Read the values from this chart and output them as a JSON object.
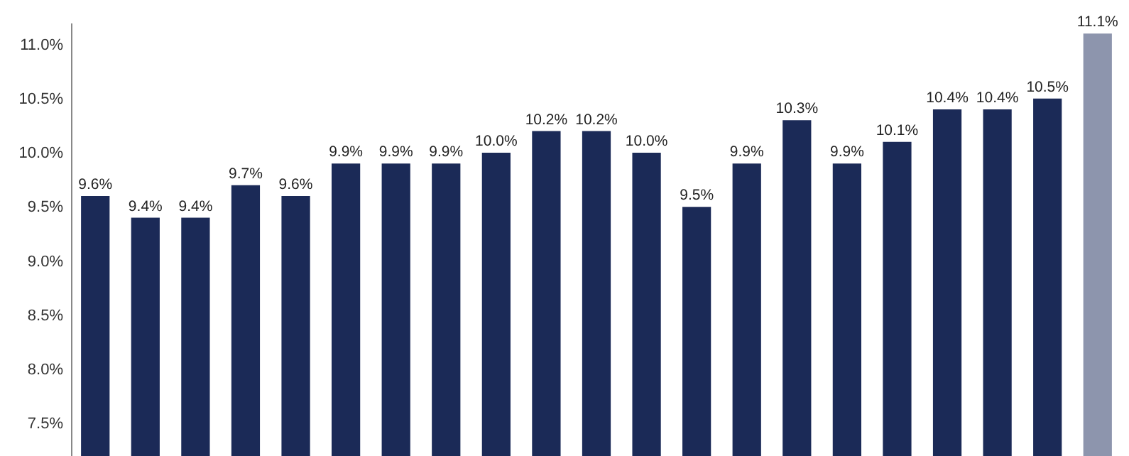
{
  "chart_data": {
    "type": "bar",
    "categories": [
      null,
      null,
      null,
      null,
      null,
      null,
      null,
      null,
      null,
      null,
      null,
      null,
      null,
      null,
      null,
      null,
      null,
      null,
      null,
      null,
      null
    ],
    "values": [
      9.6,
      9.4,
      9.4,
      9.7,
      9.6,
      9.9,
      9.9,
      9.9,
      10.0,
      10.2,
      10.2,
      10.0,
      9.5,
      9.9,
      10.3,
      9.9,
      10.1,
      10.4,
      10.4,
      10.5,
      11.1
    ],
    "colors": [
      "#1b2a57",
      "#1b2a57",
      "#1b2a57",
      "#1b2a57",
      "#1b2a57",
      "#1b2a57",
      "#1b2a57",
      "#1b2a57",
      "#1b2a57",
      "#1b2a57",
      "#1b2a57",
      "#1b2a57",
      "#1b2a57",
      "#1b2a57",
      "#1b2a57",
      "#1b2a57",
      "#1b2a57",
      "#1b2a57",
      "#1b2a57",
      "#1b2a57",
      "#8d95ad"
    ],
    "value_labels": [
      "9.6%",
      "9.4%",
      "9.4%",
      "9.7%",
      "9.6%",
      "9.9%",
      "9.9%",
      "9.9%",
      "10.0%",
      "10.2%",
      "10.2%",
      "10.0%",
      "9.5%",
      "9.9%",
      "10.3%",
      "9.9%",
      "10.1%",
      "10.4%",
      "10.4%",
      "10.5%",
      "11.1%"
    ],
    "ylim": [
      7.2,
      11.2
    ],
    "yticks": [
      {
        "value": 7.5,
        "label": "7.5%"
      },
      {
        "value": 8.0,
        "label": "8.0%"
      },
      {
        "value": 8.5,
        "label": "8.5%"
      },
      {
        "value": 9.0,
        "label": "9.0%"
      },
      {
        "value": 9.5,
        "label": "9.5%"
      },
      {
        "value": 10.0,
        "label": "10.0%"
      },
      {
        "value": 10.5,
        "label": "10.5%"
      },
      {
        "value": 11.0,
        "label": "11.0%"
      }
    ],
    "tick_labels": "y",
    "grid": false
  }
}
